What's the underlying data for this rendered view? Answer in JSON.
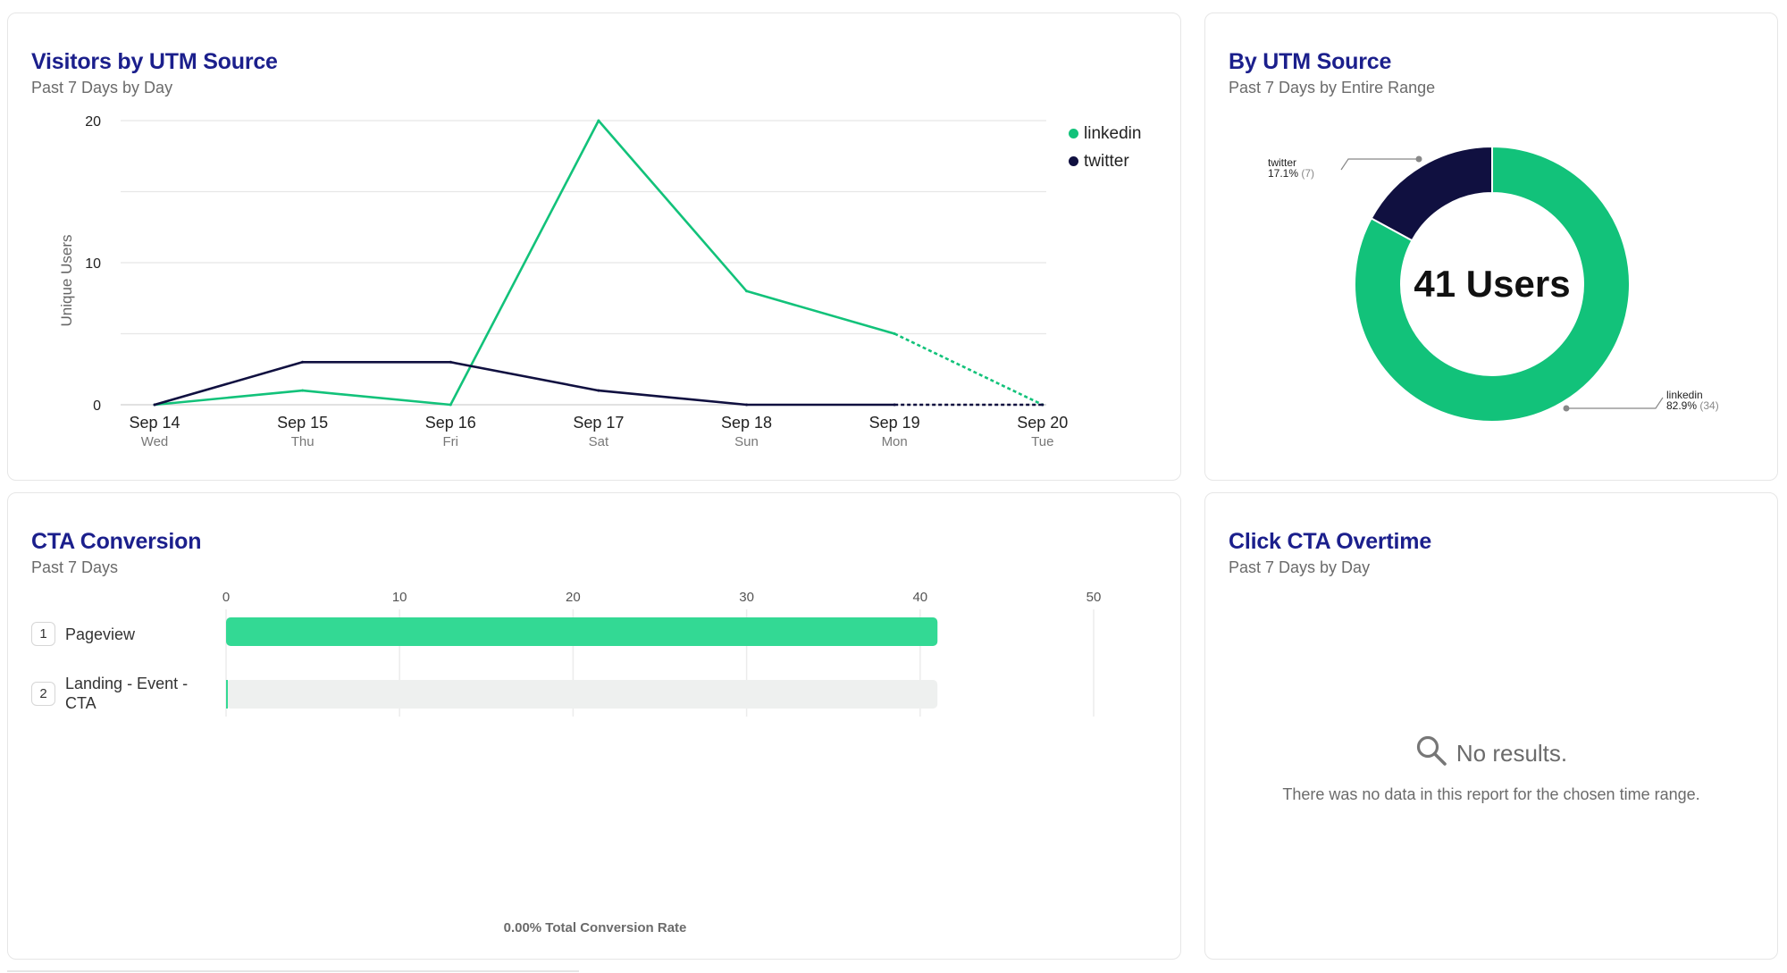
{
  "cards": {
    "visitors": {
      "title": "Visitors by UTM Source",
      "subtitle": "Past 7 Days by Day"
    },
    "utm_source": {
      "title": "By UTM Source",
      "subtitle": "Past 7 Days by Entire Range",
      "center_label": "41 Users"
    },
    "cta_conversion": {
      "title": "CTA Conversion",
      "subtitle": "Past 7 Days",
      "footer": "0.00% Total Conversion Rate"
    },
    "click_cta": {
      "title": "Click CTA Overtime",
      "subtitle": "Past 7 Days by Day",
      "empty_title": "No results.",
      "empty_desc": "There was no data in this report for the chosen time range."
    }
  },
  "colors": {
    "linkedin": "#12c27a",
    "twitter": "#101040",
    "funnel_bar": "#33d994",
    "funnel_track": "#eef0ef",
    "title": "#1b1f8c"
  },
  "chart_data": [
    {
      "type": "line",
      "ylabel": "Unique Users",
      "ylim": [
        0,
        20
      ],
      "yticks": [
        "0",
        "10",
        "20"
      ],
      "categories": [
        "Sep 14",
        "Sep 15",
        "Sep 16",
        "Sep 17",
        "Sep 18",
        "Sep 19",
        "Sep 20"
      ],
      "category_days": [
        "Wed",
        "Thu",
        "Fri",
        "Sat",
        "Sun",
        "Mon",
        "Tue"
      ],
      "legend_position": "right",
      "series": [
        {
          "name": "linkedin",
          "values": [
            0,
            1,
            0,
            20,
            8,
            5,
            0
          ],
          "partial_last": true
        },
        {
          "name": "twitter",
          "values": [
            0,
            3,
            3,
            1,
            0,
            0,
            0
          ],
          "partial_last": true
        }
      ]
    },
    {
      "type": "pie",
      "slices": [
        {
          "name": "twitter",
          "label_pct": "17.1%",
          "label_count": "(7)",
          "value": 7
        },
        {
          "name": "linkedin",
          "label_pct": "82.9%",
          "label_count": "(34)",
          "value": 34
        }
      ]
    },
    {
      "type": "bar",
      "orientation": "horizontal",
      "xlim": [
        0,
        50
      ],
      "xticks": [
        "0",
        "10",
        "20",
        "30",
        "40",
        "50"
      ],
      "steps": [
        {
          "num": "1",
          "label": "Pageview",
          "value": 41
        },
        {
          "num": "2",
          "label": "Landing - Event - CTA",
          "value": 0
        }
      ]
    }
  ]
}
